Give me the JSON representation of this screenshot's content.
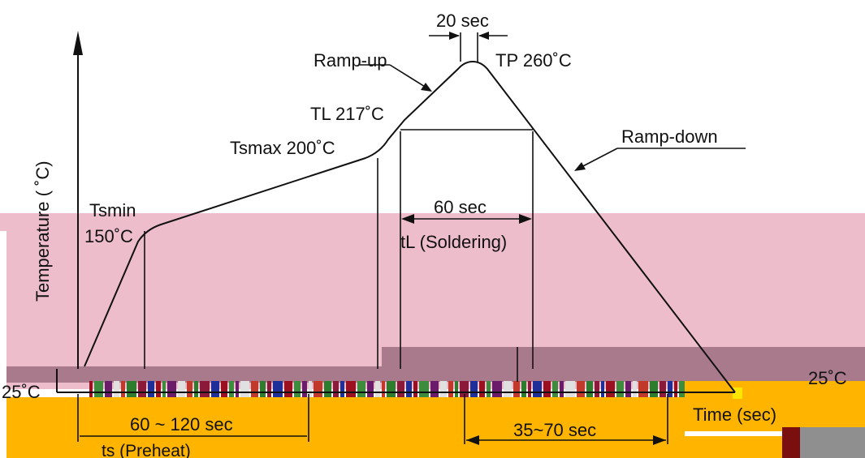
{
  "labels": {
    "ramp_up": "Ramp-up",
    "ramp_down": "Ramp-down",
    "peak_time": "20 sec",
    "tp": "TP 260˚C",
    "tl": "TL 217˚C",
    "tsmax": "Tsmax 200˚C",
    "tsmin_name": "Tsmin",
    "tsmin_temp": "150˚C",
    "y_axis": "Temperature ( ˚C)",
    "base_temp": "25˚C",
    "reflow_time": "60 sec",
    "reflow_name": "tL (Soldering)",
    "preheat_time": "60 ~ 120 sec",
    "preheat_name": "ts (Preheat)",
    "cool_time": "35~70 sec",
    "x_axis": "Time (sec)",
    "right_cut": "25˚C"
  },
  "colors": {
    "curve": "#111111",
    "pink_overlay": "#e8a9c0",
    "mauve_band": "#a97a8b",
    "orange_band": "#ffb400",
    "maroon_block": "#7b0e0e",
    "gray_block": "#8f8f8f",
    "yellow_block": "#ffe600"
  }
}
